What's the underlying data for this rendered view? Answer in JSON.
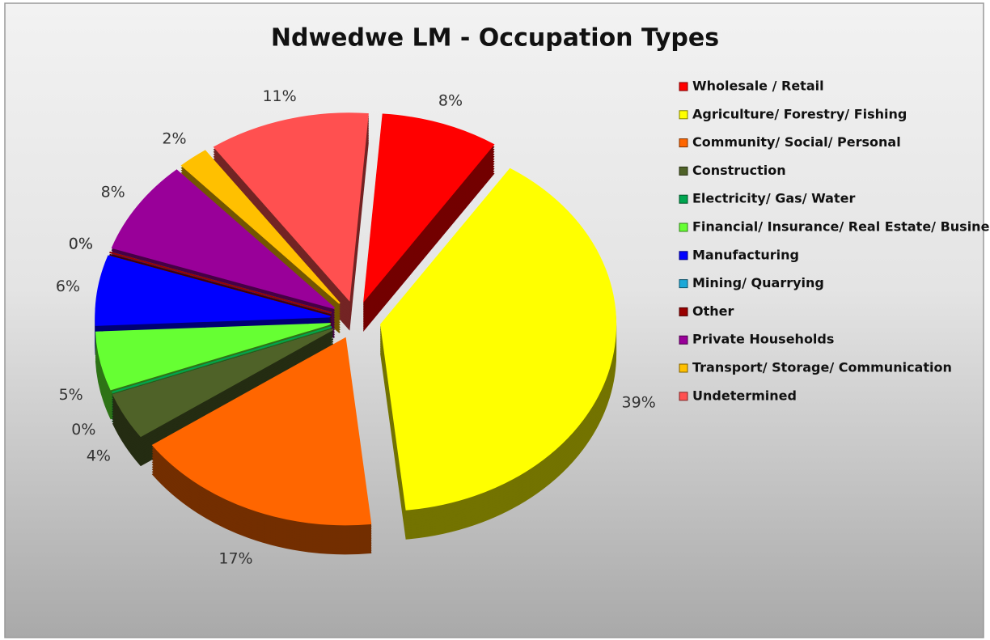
{
  "chart_data": {
    "type": "pie",
    "title": "Ndwedwe LM - Occupation Types",
    "categories": [
      "Wholesale / Retail",
      "Agriculture/ Forestry/ Fishing",
      "Community/ Social/ Personal",
      "Construction",
      "Electricity/ Gas/ Water",
      "Financial/ Insurance/ Real Estate/ Business",
      "Manufacturing",
      "Mining/ Quarrying",
      "Other",
      "Private Households",
      "Transport/ Storage/ Communication",
      "Undetermined"
    ],
    "values": [
      8,
      39,
      17,
      4,
      0,
      5,
      6,
      0,
      0,
      8,
      2,
      11
    ],
    "value_labels": [
      "8%",
      "39%",
      "17%",
      "4%",
      "0%",
      "5%",
      "6%",
      "0%",
      "0%",
      "8%",
      "2%",
      "11%"
    ],
    "colors": [
      "#ff0000",
      "#ffff00",
      "#ff6600",
      "#4f6228",
      "#00a650",
      "#66ff33",
      "#0000ff",
      "#1ca8d8",
      "#990000",
      "#990099",
      "#ffc000",
      "#ff5050"
    ],
    "legend": "right"
  }
}
